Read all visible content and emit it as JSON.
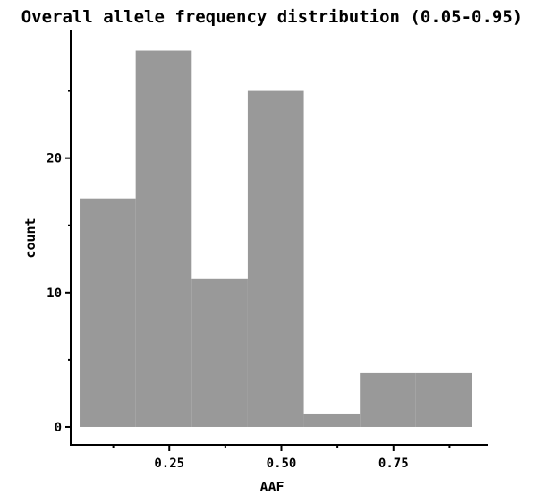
{
  "chart_data": {
    "type": "bar",
    "title": "Overall allele frequency distribution (0.05-0.95)",
    "xlabel": "AAF",
    "ylabel": "count",
    "xlim": [
      0.03,
      0.96
    ],
    "ylim": [
      -1.4,
      29.5
    ],
    "xticks": [
      0.25,
      0.5,
      0.75
    ],
    "xtick_labels": [
      "0.25",
      "0.50",
      "0.75"
    ],
    "xminor": [
      0.125,
      0.375,
      0.625,
      0.875
    ],
    "yticks": [
      0,
      10,
      20
    ],
    "ytick_labels": [
      "0",
      "10",
      "20"
    ],
    "yminor": [
      5,
      15,
      25
    ],
    "bins": [
      {
        "x0": 0.05,
        "x1": 0.175,
        "count": 17
      },
      {
        "x0": 0.175,
        "x1": 0.3,
        "count": 28
      },
      {
        "x0": 0.3,
        "x1": 0.425,
        "count": 11
      },
      {
        "x0": 0.425,
        "x1": 0.55,
        "count": 25
      },
      {
        "x0": 0.55,
        "x1": 0.675,
        "count": 1
      },
      {
        "x0": 0.675,
        "x1": 0.8,
        "count": 4
      },
      {
        "x0": 0.8,
        "x1": 0.925,
        "count": 4
      }
    ],
    "bar_color": "#999999",
    "grid": false
  }
}
